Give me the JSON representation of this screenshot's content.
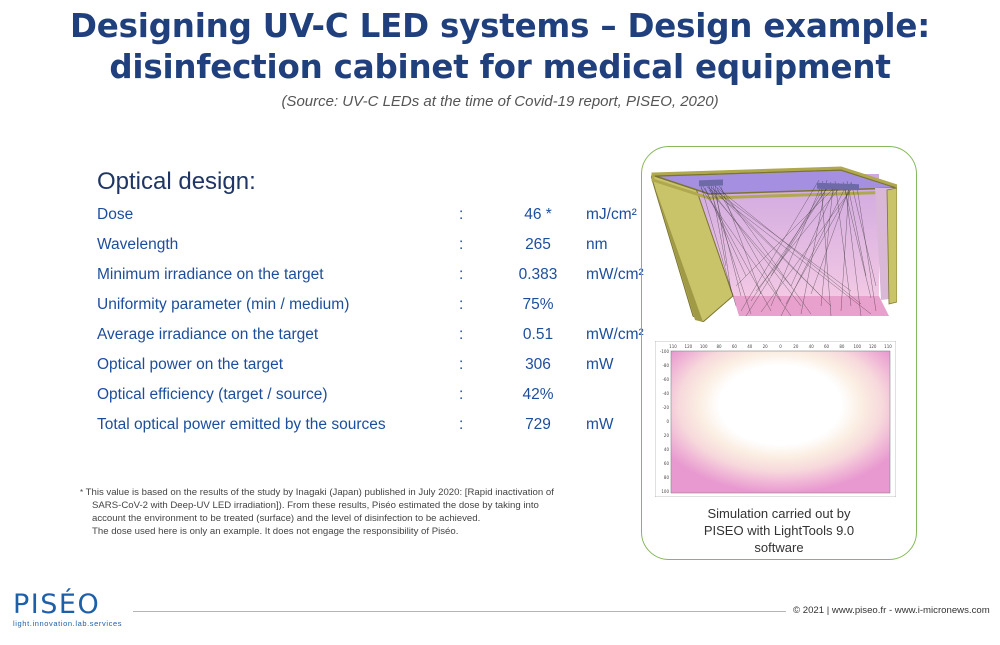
{
  "title": {
    "line1": "Designing UV-C LED systems – Design example:",
    "line2": "disinfection cabinet for medical equipment"
  },
  "source": "(Source: UV-C LEDs at the time of Covid-19 report, PISEO, 2020)",
  "optical": {
    "heading": "Optical design:",
    "rows": [
      {
        "label": "Dose",
        "sep": ":",
        "value": "46 *",
        "unit": "mJ/cm²"
      },
      {
        "label": "Wavelength",
        "sep": ":",
        "value": "265",
        "unit": "nm"
      },
      {
        "label": "Minimum irradiance on the target",
        "sep": ":",
        "value": "0.383",
        "unit": "mW/cm²"
      },
      {
        "label": "Uniformity parameter (min / medium)",
        "sep": ":",
        "value": "75%",
        "unit": ""
      },
      {
        "label": "Average irradiance on the target",
        "sep": ":",
        "value": "0.51",
        "unit": "mW/cm²"
      },
      {
        "label": "Optical power on the target",
        "sep": ":",
        "value": "306",
        "unit": "mW"
      },
      {
        "label": "Optical efficiency (target / source)",
        "sep": ":",
        "value": "42%",
        "unit": ""
      },
      {
        "label": "Total optical power emitted by the sources",
        "sep": ":",
        "value": "729",
        "unit": "mW"
      }
    ]
  },
  "footnote": {
    "mark": "*",
    "line1": "This value is based on the results of the study by Inagaki (Japan) published in July 2020: [Rapid inactivation of",
    "line2": "SARS-CoV-2 with Deep-UV LED irradiation]). From these results, Piséo estimated the dose by taking into",
    "line3": "account the environment to be treated (surface) and the level of disinfection to be achieved.",
    "line4": "The dose used here is only an example. It does not engage the responsibility of Piséo."
  },
  "simulation": {
    "x_ticks": [
      "110",
      "120",
      "100",
      "80",
      "60",
      "40",
      "20",
      "0",
      "20",
      "40",
      "60",
      "80",
      "100",
      "120",
      "110"
    ],
    "y_ticks": [
      "-100",
      "-80",
      "-60",
      "-40",
      "-20",
      "0",
      "20",
      "40",
      "60",
      "80",
      "100"
    ],
    "caption": [
      "Simulation carried out by",
      "PISEO with LightTools 9.0",
      "software"
    ]
  },
  "logo": {
    "name": "PISÉO",
    "tagline": "light.innovation.lab.services"
  },
  "footer": {
    "copyright": "© 2021 | www.piseo.fr - www.i-micronews.com"
  },
  "colors": {
    "title": "#20407d",
    "accent": "#1d4e9c",
    "frame": "#86b95a",
    "logo": "#1d5fa8"
  }
}
